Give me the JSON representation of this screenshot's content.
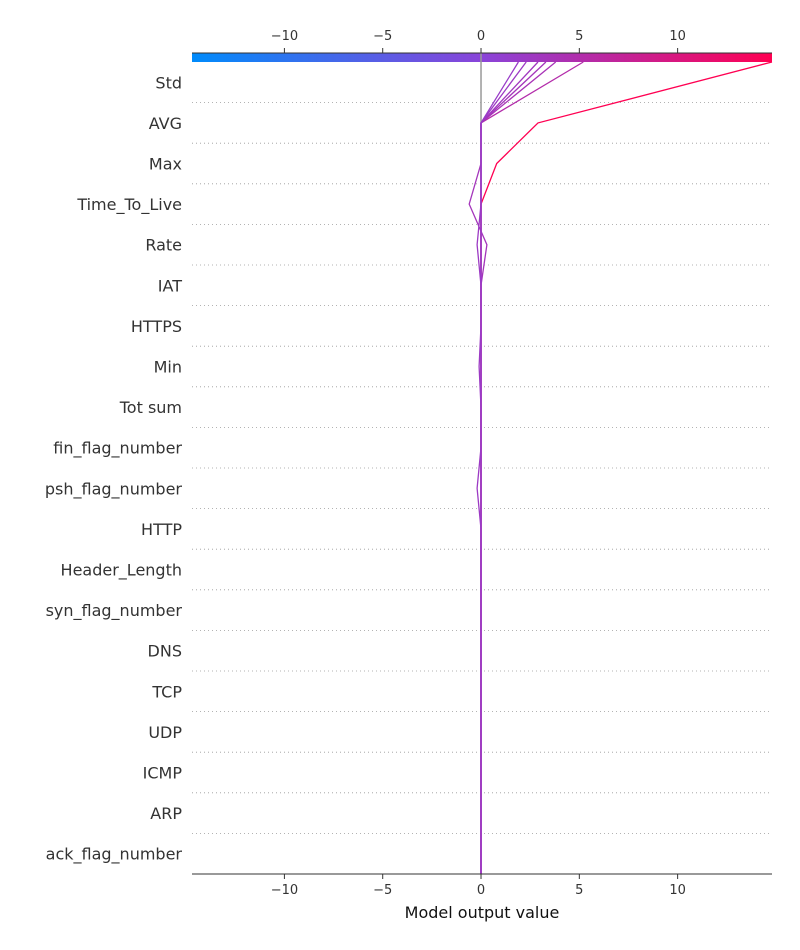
{
  "chart_data": {
    "type": "line",
    "xlabel": "Model output value",
    "xlim": [
      -14.7,
      14.8
    ],
    "base_value": 0,
    "features": [
      "Std",
      "AVG",
      "Max",
      "Time_To_Live",
      "Rate",
      "IAT",
      "HTTPS",
      "Min",
      "Tot sum",
      "fin_flag_number",
      "psh_flag_number",
      "HTTP",
      "Header_Length",
      "syn_flag_number",
      "DNS",
      "TCP",
      "UDP",
      "ICMP",
      "ARP",
      "ack_flag_number"
    ],
    "x_ticks": [
      -10,
      -5,
      0,
      5,
      10
    ],
    "x_tick_labels": [
      "−10",
      "−5",
      "0",
      "5",
      "10"
    ],
    "colorbar": {
      "min": -14.7,
      "max": 14.8,
      "colors": [
        "#008bfb",
        "#8a44d9",
        "#ff0052"
      ]
    },
    "grid": "dotted horizontal",
    "series": [
      {
        "final": 14.8,
        "values": [
          0,
          0,
          0,
          0,
          0,
          0,
          0,
          0,
          0,
          0,
          0,
          0,
          0,
          0,
          0,
          0,
          0,
          0.8,
          2.9,
          14.8
        ]
      },
      {
        "final": 5.2,
        "values": [
          0,
          0,
          0,
          0,
          0,
          0,
          0,
          0,
          0,
          0,
          0,
          0,
          0,
          0,
          0,
          0,
          0,
          0,
          0,
          5.2
        ]
      },
      {
        "final": 3.8,
        "values": [
          0,
          0,
          0,
          0,
          0,
          0,
          0,
          0,
          0,
          0,
          0,
          0,
          0,
          0,
          0,
          0,
          0,
          0,
          0,
          3.8
        ]
      },
      {
        "final": 3.3,
        "values": [
          0,
          0,
          0,
          0,
          0,
          0,
          0,
          0,
          0,
          0,
          0,
          0,
          0,
          0,
          0,
          0.3,
          -0.6,
          0,
          0,
          3.3
        ]
      },
      {
        "final": 2.9,
        "values": [
          0,
          0,
          0,
          0,
          0,
          0,
          0,
          0,
          0,
          0,
          0,
          0,
          0,
          0,
          0,
          0,
          0,
          0,
          0,
          2.9
        ]
      },
      {
        "final": 2.3,
        "values": [
          0,
          0,
          0,
          0,
          0,
          0,
          0,
          0,
          0,
          -0.2,
          0,
          0,
          -0.1,
          0,
          0,
          -0.2,
          0,
          0,
          0,
          2.3
        ]
      },
      {
        "final": 1.9,
        "values": [
          0,
          0,
          0,
          0,
          0,
          0,
          0,
          0,
          0,
          0,
          0,
          0,
          0,
          0,
          0,
          0,
          0,
          0,
          0,
          1.9
        ]
      }
    ]
  }
}
